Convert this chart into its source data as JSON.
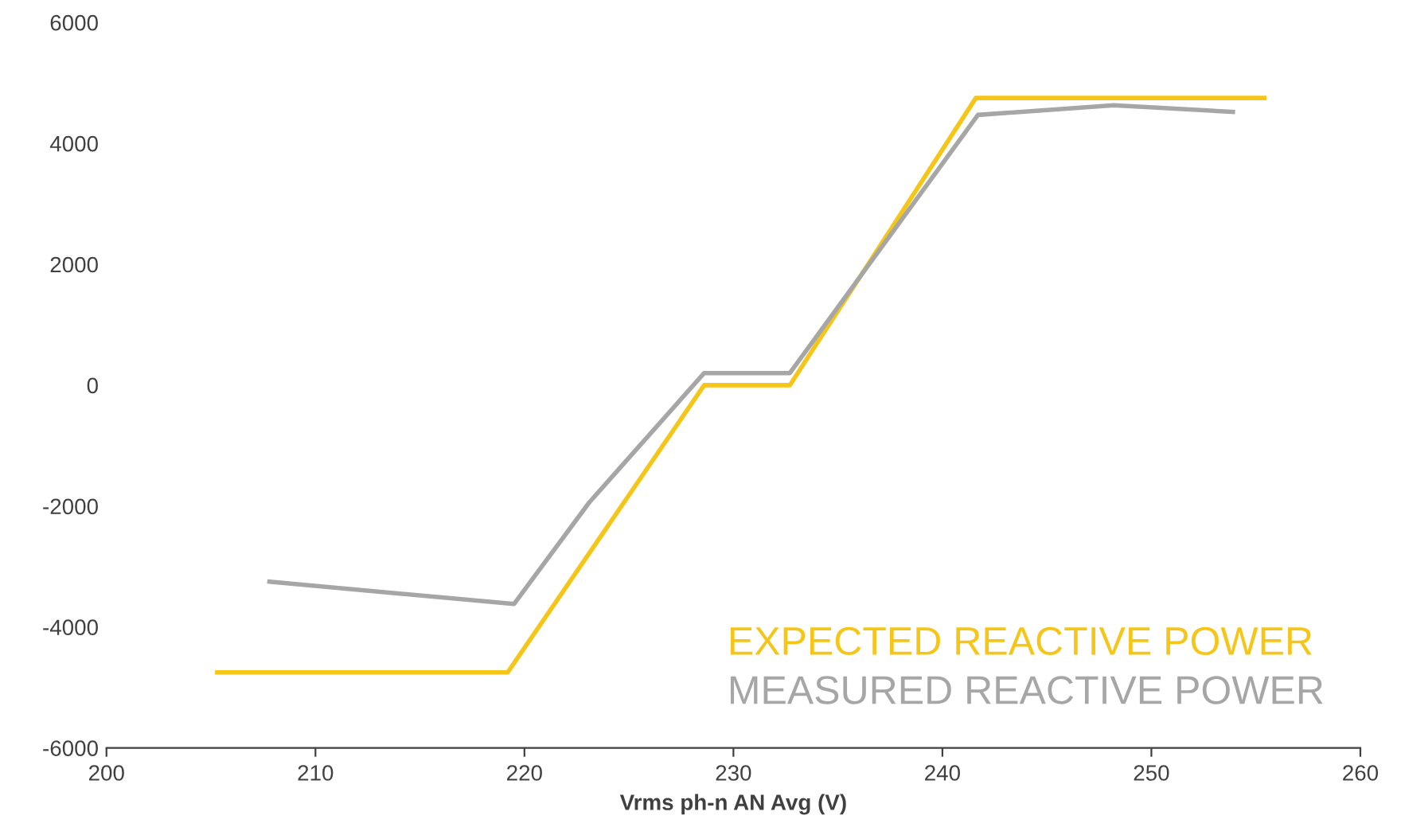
{
  "chart_data": {
    "type": "line",
    "xlabel": "Vrms ph-n AN Avg (V)",
    "xlim": [
      200,
      260
    ],
    "xticks": [
      200,
      210,
      220,
      230,
      240,
      250,
      260
    ],
    "ylim": [
      -6000,
      6000
    ],
    "yticks": [
      -6000,
      -4000,
      -2000,
      0,
      2000,
      4000,
      6000
    ],
    "grid": false,
    "legend": "bottom right",
    "marker": "none",
    "line_style": "solid",
    "series": [
      {
        "name": "EXPECTED REACTIVE POWER",
        "color": "#f5c518",
        "x": [
          205.3,
          219.2,
          228.6,
          232.7,
          241.6,
          255.4
        ],
        "values": [
          -4750,
          -4750,
          0,
          0,
          4750,
          4750
        ]
      },
      {
        "name": "MEASURED REACTIVE POWER",
        "color": "#a6a6a6",
        "x": [
          207.8,
          219.5,
          223.1,
          228.6,
          232.7,
          241.7,
          248.2,
          253.9
        ],
        "values": [
          -3250,
          -3620,
          -1940,
          200,
          200,
          4470,
          4630,
          4520
        ]
      }
    ]
  }
}
